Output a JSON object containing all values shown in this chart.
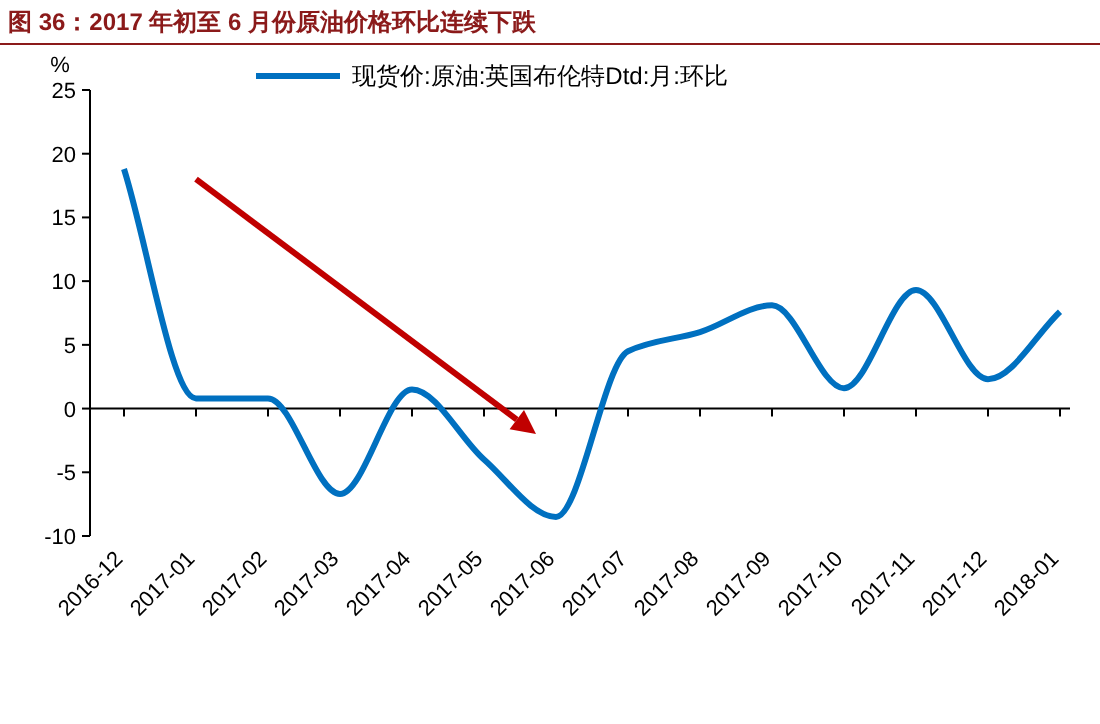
{
  "chart_data": {
    "type": "line",
    "title": "图 36：2017 年初至 6 月份原油价格环比连续下跌",
    "ylabel": "%",
    "categories": [
      "2016-12",
      "2017-01",
      "2017-02",
      "2017-03",
      "2017-04",
      "2017-05",
      "2017-06",
      "2017-07",
      "2017-08",
      "2017-09",
      "2017-10",
      "2017-11",
      "2017-12",
      "2018-01"
    ],
    "series": [
      {
        "name": "现货价:原油:英国布伦特Dtd:月:环比",
        "color": "#0070c0",
        "values": [
          18.8,
          0.8,
          0.8,
          -6.7,
          1.5,
          -4,
          -8.5,
          4.5,
          6,
          8.1,
          1.6,
          9.3,
          2.3,
          7.6
        ]
      }
    ],
    "ylim": [
      -10,
      25
    ],
    "yticks": [
      -10,
      -5,
      0,
      5,
      10,
      15,
      20,
      25
    ],
    "legend": "top",
    "marker": "none",
    "line_style": "solid"
  }
}
